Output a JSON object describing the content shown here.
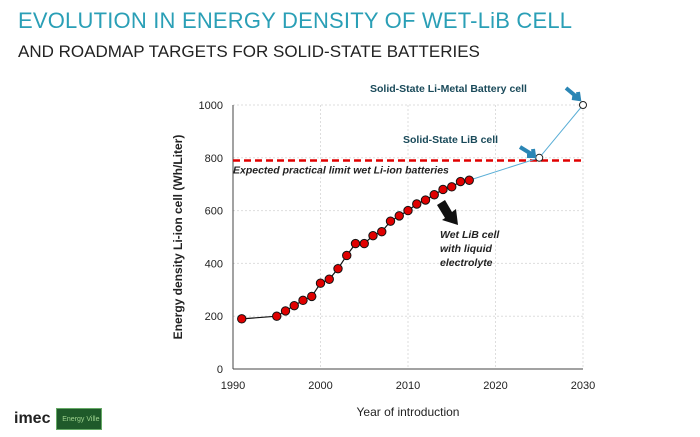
{
  "title": "EVOLUTION IN ENERGY DENSITY OF WET-LiB CELL",
  "subtitle": "AND ROADMAP TARGETS FOR SOLID-STATE BATTERIES",
  "logo": {
    "text": "imec",
    "badge": "Energy Ville"
  },
  "chart_data": {
    "type": "line",
    "xlabel": "Year of introduction",
    "ylabel": "Energy density Li-ion cell  (Wh/Liter)",
    "xlim": [
      1990,
      2030
    ],
    "ylim": [
      0,
      1000
    ],
    "xticks": [
      1990,
      2000,
      2010,
      2020,
      2030
    ],
    "yticks": [
      0,
      200,
      400,
      600,
      800,
      1000
    ],
    "grid": true,
    "series": [
      {
        "x": [
          1991,
          1995,
          1996,
          1997,
          1998,
          1999,
          2000,
          2001,
          2002,
          2003,
          2004,
          2005,
          2006,
          2007,
          2008,
          2009,
          2010,
          2011,
          2012,
          2013,
          2014,
          2015,
          2016,
          2017
        ],
        "y": [
          190,
          200,
          220,
          240,
          260,
          275,
          325,
          340,
          380,
          430,
          475,
          475,
          505,
          520,
          560,
          580,
          600,
          625,
          640,
          660,
          680,
          690,
          710,
          715
        ],
        "color": "#e00000"
      },
      {
        "x": [
          2017,
          2025,
          2030
        ],
        "y": [
          715,
          800,
          1000
        ],
        "color": "#5aaed6"
      }
    ],
    "limit": {
      "y": 790,
      "label": "Expected practical limit wet Li-ion batteries",
      "color": "#e00000"
    },
    "annotations": [
      {
        "text": "Solid-State Li-Metal Battery cell",
        "x": 2030,
        "y": 1000
      },
      {
        "text": "Solid-State LiB cell",
        "x": 2025,
        "y": 800
      },
      {
        "text": "Wet LiB cell with liquid electrolyte",
        "lines": [
          "Wet LiB cell",
          "with liquid",
          "electrolyte"
        ],
        "x": 2014,
        "y": 640
      }
    ]
  }
}
